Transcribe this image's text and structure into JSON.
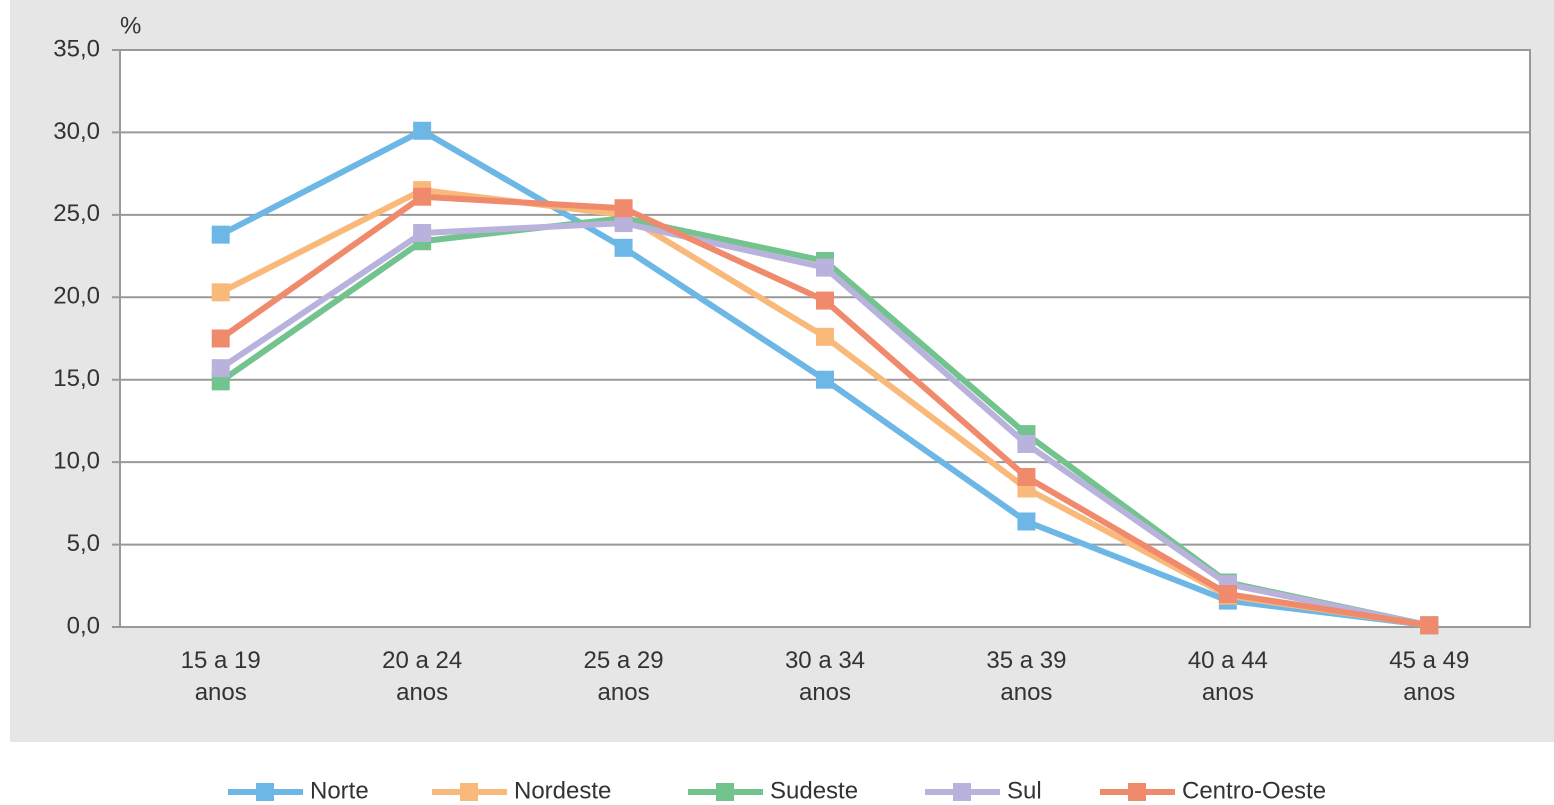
{
  "chart_data": {
    "type": "line",
    "y_axis_label": "%",
    "categories": [
      "15 a 19\nanos",
      "20 a 24\nanos",
      "25 a 29\nanos",
      "30 a 34\nanos",
      "35 a 39\nanos",
      "40 a 44\nanos",
      "45 a 49\nanos"
    ],
    "series": [
      {
        "name": "Norte",
        "color": "#6cb7e6",
        "values": [
          23.8,
          30.1,
          23.0,
          15.0,
          6.4,
          1.6,
          0.1
        ]
      },
      {
        "name": "Nordeste",
        "color": "#f8b97a",
        "values": [
          20.3,
          26.5,
          25.0,
          17.6,
          8.4,
          1.9,
          0.1
        ]
      },
      {
        "name": "Sudeste",
        "color": "#72c38e",
        "values": [
          14.9,
          23.4,
          24.8,
          22.2,
          11.7,
          2.7,
          0.1
        ]
      },
      {
        "name": "Sul",
        "color": "#b9b2dc",
        "values": [
          15.7,
          23.9,
          24.5,
          21.8,
          11.1,
          2.6,
          0.1
        ]
      },
      {
        "name": "Centro-Oeste",
        "color": "#f08a6c",
        "values": [
          17.5,
          26.1,
          25.4,
          19.8,
          9.1,
          2.0,
          0.1
        ]
      }
    ],
    "ylim": [
      0,
      35
    ],
    "yticks": [
      {
        "value": 0,
        "label": "0,0"
      },
      {
        "value": 5,
        "label": "5,0"
      },
      {
        "value": 10,
        "label": "10,0"
      },
      {
        "value": 15,
        "label": "15,0"
      },
      {
        "value": 20,
        "label": "20,0"
      },
      {
        "value": 25,
        "label": "25,0"
      },
      {
        "value": 30,
        "label": "30,0"
      },
      {
        "value": 35,
        "label": "35,0"
      }
    ],
    "grid": true,
    "legend": "bottom"
  }
}
